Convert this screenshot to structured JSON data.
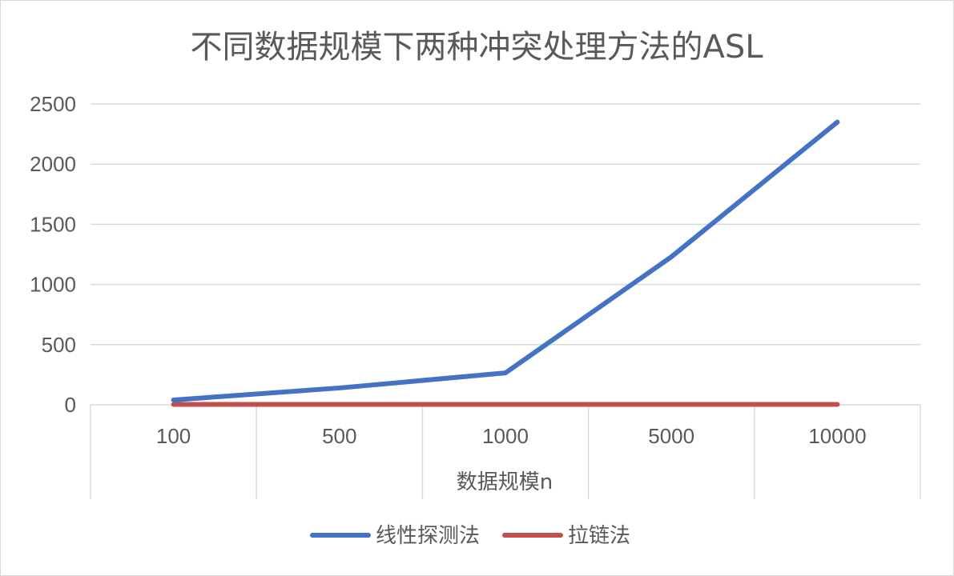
{
  "chart_data": {
    "type": "line",
    "title": "不同数据规模下两种冲突处理方法的ASL",
    "xlabel": "数据规模n",
    "ylabel": "",
    "categories": [
      "100",
      "500",
      "1000",
      "5000",
      "10000"
    ],
    "ylim": [
      0,
      2500
    ],
    "yticks": [
      0,
      500,
      1000,
      1500,
      2000,
      2500
    ],
    "grid": true,
    "legend_position": "bottom",
    "series": [
      {
        "name": "线性探测法",
        "color": "#4472C4",
        "values": [
          40,
          140,
          265,
          1230,
          2350
        ]
      },
      {
        "name": "拉链法",
        "color": "#C0504D",
        "values": [
          3,
          3,
          3,
          3,
          3
        ]
      }
    ]
  }
}
